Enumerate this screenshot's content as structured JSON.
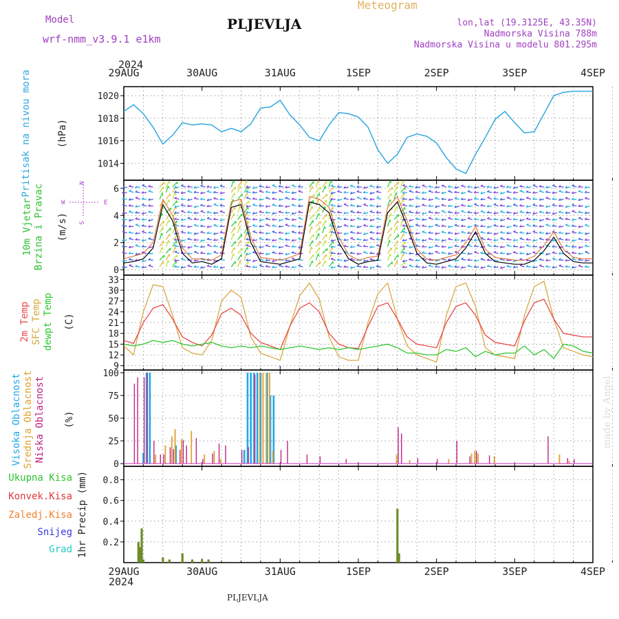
{
  "header": {
    "model_label": "Model",
    "model_name": "wrf-nmm_v3.9.1 e1km",
    "title": "PLJEVLJA",
    "product": "Meteogram",
    "lonlat": "lon,lat (19.3125E, 43.35N)",
    "altitude": "Nadmorska Visina 788m",
    "model_altitude": "Nadmorska Visina u modelu 801.295m",
    "year_top": "2024",
    "year_bottom": "2024",
    "footer": "PLJEVLJA",
    "credit": "made by Angel"
  },
  "colors": {
    "pressure": "#30a8e0",
    "temp2m": "#e84848",
    "sfc": "#d8a840",
    "dewpt": "#30c830",
    "total_precip": "#6e8c28",
    "high_cloud": "#20a8e8",
    "mid_cloud": "#e0a030",
    "low_cloud": "#c02080",
    "wind_line": "#000000",
    "gust": "#e06020"
  },
  "chart_data": [
    {
      "id": "pressure",
      "type": "line",
      "ylabel_lines": [
        "Pritisak na nivou mora"
      ],
      "unit": "(hPa)",
      "ylim": [
        1012.5,
        1020.8
      ],
      "yticks": [
        1014,
        1016,
        1018,
        1020
      ],
      "xticks": [
        "29AUG",
        "30AUG",
        "31AUG",
        "1SEP",
        "2SEP",
        "3SEP",
        "4SEP"
      ],
      "x_hours": [
        0,
        3,
        6,
        9,
        12,
        15,
        18,
        21,
        24,
        27,
        30,
        33,
        36,
        39,
        42,
        45,
        48,
        51,
        54,
        57,
        60,
        63,
        66,
        69,
        72,
        75,
        78,
        81,
        84,
        87,
        90,
        93,
        96,
        99,
        102,
        105,
        108,
        111,
        114,
        117,
        120,
        123,
        126,
        129,
        132,
        135,
        138,
        141,
        144
      ],
      "values": [
        1018.6,
        1019.2,
        1018.4,
        1017.2,
        1015.7,
        1016.5,
        1017.6,
        1017.4,
        1017.5,
        1017.4,
        1016.8,
        1017.1,
        1016.8,
        1017.5,
        1018.9,
        1019.0,
        1019.6,
        1018.3,
        1017.4,
        1016.3,
        1016.0,
        1017.4,
        1018.5,
        1018.4,
        1018.1,
        1017.2,
        1015.2,
        1014.0,
        1014.8,
        1016.3,
        1016.6,
        1016.4,
        1015.8,
        1014.5,
        1013.5,
        1013.1,
        1014.8,
        1016.3,
        1017.9,
        1018.6,
        1017.6,
        1016.7,
        1016.8,
        1018.4,
        1020.0,
        1020.3,
        1020.4,
        1020.4,
        1020.4
      ]
    },
    {
      "id": "wind",
      "type": "line",
      "ylabel_lines": [
        "10m Vjetar",
        "Brzina i Pravac"
      ],
      "unit": "(m/s)",
      "compass": [
        "N",
        "W",
        "E",
        "S"
      ],
      "ylim": [
        -0.4,
        6.6
      ],
      "yticks": [
        0,
        2,
        4,
        6
      ],
      "x_hours": [
        0,
        3,
        6,
        9,
        12,
        15,
        18,
        21,
        24,
        27,
        30,
        33,
        36,
        39,
        42,
        45,
        48,
        51,
        54,
        57,
        60,
        63,
        66,
        69,
        72,
        75,
        78,
        81,
        84,
        87,
        90,
        93,
        96,
        99,
        102,
        105,
        108,
        111,
        114,
        117,
        120,
        123,
        126,
        129,
        132,
        135,
        138,
        141,
        144
      ],
      "speed": [
        0.5,
        0.6,
        0.8,
        1.6,
        4.8,
        3.6,
        1.2,
        0.5,
        0.6,
        0.4,
        0.8,
        4.6,
        4.8,
        2.0,
        0.6,
        0.5,
        0.4,
        0.6,
        0.8,
        5.0,
        4.8,
        4.2,
        2.0,
        0.8,
        0.4,
        0.6,
        0.7,
        4.2,
        5.0,
        3.2,
        1.2,
        0.5,
        0.4,
        0.6,
        0.8,
        1.6,
        2.8,
        1.2,
        0.6,
        0.5,
        0.4,
        0.4,
        0.7,
        1.4,
        2.4,
        1.2,
        0.6,
        0.5,
        0.5
      ],
      "gust": [
        0.8,
        1.0,
        1.2,
        2.0,
        5.2,
        4.0,
        1.6,
        0.8,
        0.8,
        0.7,
        1.1,
        5.0,
        5.2,
        2.4,
        0.9,
        0.8,
        0.7,
        0.9,
        1.2,
        5.4,
        5.2,
        4.6,
        2.4,
        1.1,
        0.7,
        0.9,
        1.0,
        4.6,
        5.4,
        3.6,
        1.5,
        0.8,
        0.7,
        0.9,
        1.1,
        2.0,
        3.2,
        1.5,
        0.9,
        0.8,
        0.7,
        0.7,
        1.0,
        1.8,
        2.8,
        1.5,
        0.9,
        0.8,
        0.8
      ],
      "arrow_rows": [
        0.2,
        0.7,
        1.2,
        1.7,
        2.2,
        2.7,
        3.2,
        3.7,
        4.2,
        4.7,
        5.2,
        5.7,
        6.1
      ],
      "arrow_colors": [
        "#8040e0",
        "#4060e0",
        "#20b0e0",
        "#30d040",
        "#c0e040",
        "#e0c040"
      ]
    },
    {
      "id": "temperature",
      "type": "line",
      "ylabel_lines": [
        "2m Temp",
        "SFC Temp",
        "dewpt Temp"
      ],
      "unit": "(C)",
      "ylim": [
        7.8,
        34.2
      ],
      "yticks": [
        9,
        12,
        15,
        18,
        21,
        24,
        27,
        30,
        33
      ],
      "x_hours": [
        0,
        3,
        6,
        9,
        12,
        15,
        18,
        21,
        24,
        27,
        30,
        33,
        36,
        39,
        42,
        45,
        48,
        51,
        54,
        57,
        60,
        63,
        66,
        69,
        72,
        75,
        78,
        81,
        84,
        87,
        90,
        93,
        96,
        99,
        102,
        105,
        108,
        111,
        114,
        117,
        120,
        123,
        126,
        129,
        132,
        135,
        138,
        141,
        144
      ],
      "series": [
        {
          "name": "2m Temp",
          "values": [
            16.0,
            15.2,
            21.0,
            25.0,
            26.0,
            22.0,
            17.0,
            15.5,
            14.5,
            17.5,
            23.5,
            25.0,
            23.0,
            18.0,
            15.5,
            14.5,
            13.5,
            20.0,
            25.0,
            26.5,
            24.0,
            18.0,
            15.0,
            14.0,
            13.8,
            20.0,
            25.5,
            26.5,
            22.0,
            17.0,
            15.0,
            14.5,
            14.0,
            21.0,
            25.5,
            26.5,
            23.0,
            17.5,
            15.5,
            15.0,
            14.5,
            21.5,
            26.5,
            27.5,
            22.0,
            18.0,
            17.5,
            17.0,
            17.0
          ]
        },
        {
          "name": "SFC Temp",
          "values": [
            14.5,
            12.0,
            24.0,
            31.5,
            31.0,
            23.0,
            14.0,
            12.5,
            12.0,
            16.0,
            27.0,
            30.0,
            28.0,
            17.0,
            12.5,
            11.5,
            10.5,
            20.0,
            28.5,
            32.0,
            27.5,
            17.0,
            11.5,
            10.5,
            10.5,
            21.0,
            29.0,
            32.0,
            22.0,
            14.5,
            12.0,
            11.0,
            10.0,
            23.0,
            31.0,
            32.0,
            25.5,
            14.0,
            12.0,
            11.5,
            11.0,
            23.0,
            31.0,
            32.5,
            22.0,
            14.0,
            13.0,
            12.0,
            11.5
          ]
        },
        {
          "name": "dewpt Temp",
          "values": [
            15.0,
            14.5,
            15.0,
            16.0,
            15.5,
            16.0,
            15.0,
            14.5,
            15.0,
            15.5,
            14.5,
            14.0,
            14.5,
            14.0,
            14.5,
            14.0,
            13.5,
            14.0,
            14.5,
            14.0,
            13.5,
            14.0,
            13.5,
            14.0,
            13.5,
            14.0,
            14.5,
            15.0,
            14.0,
            12.5,
            12.5,
            12.0,
            12.0,
            13.5,
            13.0,
            14.0,
            11.5,
            13.0,
            12.0,
            12.5,
            12.5,
            14.5,
            12.0,
            13.5,
            11.0,
            15.0,
            14.5,
            13.0,
            12.5
          ]
        }
      ]
    },
    {
      "id": "clouds",
      "type": "bar",
      "ylabel_lines": [
        "Visoka Oblacnost",
        "Srednja Oblacnost",
        "Niska Oblacnost"
      ],
      "unit": "(%)",
      "ylim": [
        -3,
        103
      ],
      "yticks": [
        0,
        25,
        50,
        75,
        100
      ],
      "series": [
        {
          "name": "Visoka Oblacnost",
          "points": [
            [
              6,
              12
            ],
            [
              7,
              100
            ],
            [
              8,
              100
            ],
            [
              16,
              20
            ],
            [
              38,
              100
            ],
            [
              39,
              100
            ],
            [
              40,
              100
            ],
            [
              41,
              100
            ],
            [
              42,
              100
            ],
            [
              44,
              100
            ],
            [
              45,
              75
            ],
            [
              46,
              75
            ],
            [
              37,
              15
            ]
          ]
        },
        {
          "name": "Srednja Oblacnost",
          "points": [
            [
              10,
              10
            ],
            [
              13,
              20
            ],
            [
              15,
              30
            ],
            [
              16,
              38
            ],
            [
              18,
              27
            ],
            [
              21,
              36
            ],
            [
              25,
              10
            ],
            [
              28,
              14
            ],
            [
              30,
              5
            ],
            [
              42,
              100
            ],
            [
              43,
              100
            ],
            [
              44,
              100
            ],
            [
              45,
              100
            ],
            [
              46,
              14
            ],
            [
              84,
              10
            ],
            [
              88,
              4
            ],
            [
              100,
              5
            ],
            [
              107,
              11
            ],
            [
              108,
              14
            ],
            [
              109,
              11
            ],
            [
              114,
              8
            ],
            [
              134,
              10
            ],
            [
              137,
              3
            ]
          ]
        },
        {
          "name": "Niska Oblacnost",
          "points": [
            [
              3,
              88
            ],
            [
              4,
              95
            ],
            [
              6,
              95
            ],
            [
              7,
              100
            ],
            [
              9,
              25
            ],
            [
              11,
              10
            ],
            [
              12,
              10
            ],
            [
              14,
              18
            ],
            [
              15,
              16
            ],
            [
              17,
              15
            ],
            [
              18,
              26
            ],
            [
              19,
              20
            ],
            [
              22,
              28
            ],
            [
              24,
              5
            ],
            [
              27,
              11
            ],
            [
              29,
              22
            ],
            [
              31,
              20
            ],
            [
              36,
              15
            ],
            [
              38,
              18
            ],
            [
              40,
              98
            ],
            [
              48,
              15
            ],
            [
              50,
              25
            ],
            [
              56,
              10
            ],
            [
              60,
              8
            ],
            [
              68,
              5
            ],
            [
              84,
              40
            ],
            [
              85,
              33
            ],
            [
              90,
              6
            ],
            [
              96,
              5
            ],
            [
              102,
              25
            ],
            [
              106,
              8
            ],
            [
              108,
              14
            ],
            [
              112,
              9
            ],
            [
              130,
              30
            ],
            [
              136,
              6
            ],
            [
              138,
              5
            ]
          ]
        }
      ]
    },
    {
      "id": "precip",
      "type": "bar",
      "ylabel_lines": [
        "Ukupna Kisa",
        "Konvek.Kisa",
        "Zaledj.Kisa",
        "Snijeg",
        "Grad"
      ],
      "legend_colors": [
        "#30c030",
        "#e03838",
        "#f08030",
        "#3838e0",
        "#20c8c8"
      ],
      "unit": "1hr Precip (mm)",
      "ylim": [
        0,
        0.93
      ],
      "yticks": [
        0.2,
        0.4,
        0.6,
        0.8
      ],
      "xticks": [
        "29AUG",
        "30AUG",
        "31AUG",
        "1SEP",
        "2SEP",
        "3SEP",
        "4SEP"
      ],
      "series": [
        {
          "name": "Ukupna Kisa",
          "points": [
            [
              4.5,
              0.2
            ],
            [
              5,
              0.15
            ],
            [
              5.5,
              0.33
            ],
            [
              6,
              0.03
            ],
            [
              12,
              0.05
            ],
            [
              14,
              0.03
            ],
            [
              18,
              0.09
            ],
            [
              21,
              0.03
            ],
            [
              24,
              0.03
            ],
            [
              26,
              0.03
            ],
            [
              84,
              0.52
            ],
            [
              84.5,
              0.09
            ]
          ]
        }
      ]
    }
  ]
}
